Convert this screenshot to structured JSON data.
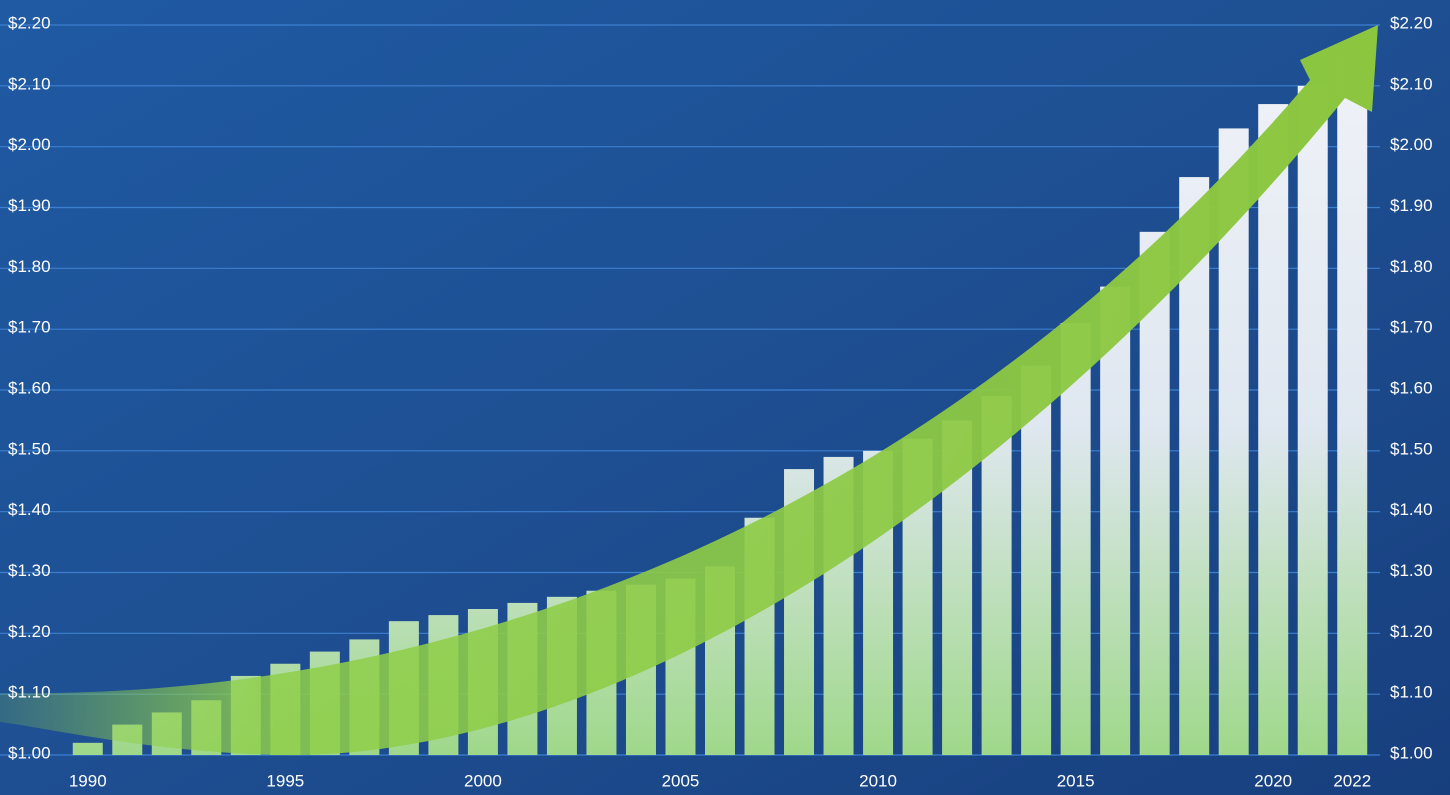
{
  "chart_data": {
    "type": "bar",
    "categories": [
      "1990",
      null,
      null,
      null,
      null,
      "1995",
      null,
      null,
      null,
      null,
      "2000",
      null,
      null,
      null,
      null,
      "2005",
      null,
      null,
      null,
      null,
      "2010",
      null,
      null,
      null,
      null,
      "2015",
      null,
      null,
      null,
      null,
      "2020",
      null,
      "2022"
    ],
    "values": [
      1.02,
      1.05,
      1.07,
      1.09,
      1.13,
      1.15,
      1.17,
      1.19,
      1.22,
      1.23,
      1.24,
      1.25,
      1.26,
      1.27,
      1.28,
      1.29,
      1.31,
      1.39,
      1.47,
      1.49,
      1.5,
      1.52,
      1.55,
      1.59,
      1.64,
      1.71,
      1.77,
      1.86,
      1.95,
      2.03,
      2.07,
      2.1,
      2.15
    ],
    "ylim": [
      1.0,
      2.2
    ],
    "yticks": [
      {
        "value": 1.0,
        "label": "$1.00"
      },
      {
        "value": 1.1,
        "label": "$1.10"
      },
      {
        "value": 1.2,
        "label": "$1.20"
      },
      {
        "value": 1.3,
        "label": "$1.30"
      },
      {
        "value": 1.4,
        "label": "$1.40"
      },
      {
        "value": 1.5,
        "label": "$1.50"
      },
      {
        "value": 1.6,
        "label": "$1.60"
      },
      {
        "value": 1.7,
        "label": "$1.70"
      },
      {
        "value": 1.8,
        "label": "$1.80"
      },
      {
        "value": 1.9,
        "label": "$1.90"
      },
      {
        "value": 2.0,
        "label": "$2.00"
      },
      {
        "value": 2.1,
        "label": "$2.10"
      },
      {
        "value": 2.2,
        "label": "$2.20"
      }
    ],
    "y2lim": [
      1.0,
      2.2
    ],
    "y2ticks": [
      {
        "value": 1.0,
        "label": "$1.00"
      },
      {
        "value": 1.1,
        "label": "$1.10"
      },
      {
        "value": 1.2,
        "label": "$1.20"
      },
      {
        "value": 1.3,
        "label": "$1.30"
      },
      {
        "value": 1.4,
        "label": "$1.40"
      },
      {
        "value": 1.5,
        "label": "$1.50"
      },
      {
        "value": 1.6,
        "label": "$1.60"
      },
      {
        "value": 1.7,
        "label": "$1.70"
      },
      {
        "value": 1.8,
        "label": "$1.80"
      },
      {
        "value": 1.9,
        "label": "$1.90"
      },
      {
        "value": 2.0,
        "label": "$2.00"
      },
      {
        "value": 2.1,
        "label": "$2.10"
      },
      {
        "value": 2.2,
        "label": "$2.20"
      }
    ],
    "grid": true
  }
}
